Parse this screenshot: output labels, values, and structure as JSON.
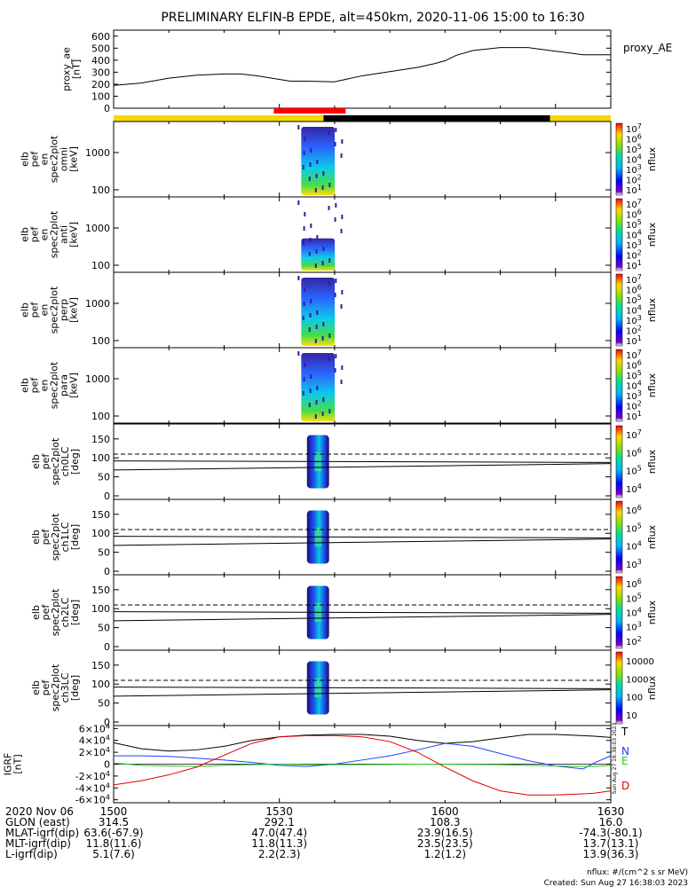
{
  "title": "PRELIMINARY ELFIN-B EPDE, alt=450km, 2020-11-06 15:00 to 16:30",
  "colors": {
    "orbit_day": "#f5d800",
    "orbit_night": "#000000",
    "science_zone": "#ff0000",
    "trace_T": "#000000",
    "trace_N": "#1f3fff",
    "trace_E": "#1ccf1c",
    "trace_D": "#e00000"
  },
  "chart_data": [
    {
      "type": "line",
      "panel": "proxy_ae",
      "ylabel_lines": [
        "proxy_ae",
        "[nT]"
      ],
      "legend": "proxy_AE",
      "ylim": [
        0,
        650
      ],
      "yticks": [
        "0",
        "100",
        "200",
        "300",
        "400",
        "500",
        "600"
      ],
      "x": [
        1500,
        1505,
        1510,
        1515,
        1520,
        1523,
        1526,
        1530,
        1532,
        1535,
        1540,
        1545,
        1550,
        1555,
        1558,
        1600,
        1602,
        1605,
        1610,
        1615,
        1620,
        1625,
        1630
      ],
      "values": [
        190,
        210,
        250,
        275,
        285,
        285,
        270,
        240,
        225,
        225,
        220,
        270,
        305,
        340,
        370,
        395,
        440,
        480,
        505,
        505,
        475,
        445,
        445
      ]
    },
    {
      "type": "heatmap",
      "panel": "spectra",
      "panels": [
        {
          "ylabel_lines": [
            "elb",
            "pef",
            "en",
            "spec2plot",
            "omni",
            "[keV]"
          ],
          "yticks": [
            "100",
            "1000"
          ],
          "cbar_ticks": [
            "10<sup>1</sup>",
            "10<sup>2</sup>",
            "10<sup>3</sup>",
            "10<sup>4</sup>",
            "10<sup>5</sup>",
            "10<sup>6</sup>",
            "10<sup>7</sup>"
          ],
          "cbar_label": "nflux"
        },
        {
          "ylabel_lines": [
            "elb",
            "pef",
            "en",
            "spec2plot",
            "anti",
            "[keV]"
          ],
          "yticks": [
            "100",
            "1000"
          ],
          "cbar_ticks": [
            "10<sup>1</sup>",
            "10<sup>2</sup>",
            "10<sup>3</sup>",
            "10<sup>4</sup>",
            "10<sup>5</sup>",
            "10<sup>6</sup>",
            "10<sup>7</sup>"
          ],
          "cbar_label": "nflux"
        },
        {
          "ylabel_lines": [
            "elb",
            "pef",
            "en",
            "spec2plot",
            "perp",
            "[keV]"
          ],
          "yticks": [
            "100",
            "1000"
          ],
          "cbar_ticks": [
            "10<sup>1</sup>",
            "10<sup>2</sup>",
            "10<sup>3</sup>",
            "10<sup>4</sup>",
            "10<sup>5</sup>",
            "10<sup>6</sup>",
            "10<sup>7</sup>"
          ],
          "cbar_label": "nflux"
        },
        {
          "ylabel_lines": [
            "elb",
            "pef",
            "en",
            "spec2plot",
            "para",
            "[keV]"
          ],
          "yticks": [
            "100",
            "1000"
          ],
          "cbar_ticks": [
            "10<sup>1</sup>",
            "10<sup>2</sup>",
            "10<sup>3</sup>",
            "10<sup>4</sup>",
            "10<sup>5</sup>",
            "10<sup>6</sup>",
            "10<sup>7</sup>"
          ],
          "cbar_label": "nflux"
        }
      ]
    },
    {
      "type": "heatmap",
      "panel": "pitch_angle",
      "panels": [
        {
          "ylabel_lines": [
            "elb",
            "pef",
            "spec2plot",
            "ch0LC",
            "[deg]"
          ],
          "yticks": [
            "0",
            "50",
            "100",
            "150"
          ],
          "cbar_ticks": [
            "10<sup>4</sup>",
            "10<sup>5</sup>",
            "10<sup>6</sup>",
            "10<sup>7</sup>"
          ],
          "cbar_label": "nflux"
        },
        {
          "ylabel_lines": [
            "elb",
            "pef",
            "spec2plot",
            "ch1LC",
            "[deg]"
          ],
          "yticks": [
            "0",
            "50",
            "100",
            "150"
          ],
          "cbar_ticks": [
            "10<sup>3</sup>",
            "10<sup>4</sup>",
            "10<sup>5</sup>",
            "10<sup>6</sup>"
          ],
          "cbar_label": "nflux"
        },
        {
          "ylabel_lines": [
            "elb",
            "pef",
            "spec2plot",
            "ch2LC",
            "[deg]"
          ],
          "yticks": [
            "0",
            "50",
            "100",
            "150"
          ],
          "cbar_ticks": [
            "10<sup>2</sup>",
            "10<sup>3</sup>",
            "10<sup>4</sup>",
            "10<sup>5</sup>",
            "10<sup>6</sup>"
          ],
          "cbar_label": "nflux"
        },
        {
          "ylabel_lines": [
            "elb",
            "pef",
            "spec2plot",
            "ch3LC",
            "[deg]"
          ],
          "yticks": [
            "0",
            "50",
            "100",
            "150"
          ],
          "cbar_ticks": [
            "10",
            "100",
            "1000",
            "10000"
          ],
          "cbar_label": "nflux"
        }
      ]
    },
    {
      "type": "line",
      "panel": "igrf",
      "ylabel_lines": [
        "IGRF",
        "[nT]"
      ],
      "ylim": [
        -65000,
        65000
      ],
      "yticks": [
        "-6×10<sup>4</sup>",
        "-4×10<sup>4</sup>",
        "-2×10<sup>4</sup>",
        "0",
        "2×10<sup>4</sup>",
        "4×10<sup>4</sup>",
        "6×10<sup>4</sup>"
      ],
      "x": [
        1500,
        1505,
        1510,
        1515,
        1520,
        1525,
        1530,
        1535,
        1540,
        1545,
        1550,
        1555,
        1600,
        1605,
        1610,
        1615,
        1620,
        1625,
        1627,
        1630
      ],
      "series": [
        {
          "name": "T",
          "color": "#000000",
          "values": [
            36000,
            26000,
            22000,
            24000,
            30000,
            40000,
            46000,
            49000,
            50000,
            50000,
            47000,
            40000,
            35000,
            38000,
            44000,
            50000,
            50000,
            48000,
            47000,
            45000
          ]
        },
        {
          "name": "N",
          "color": "#1f3fff",
          "values": [
            14000,
            14000,
            13000,
            10000,
            7000,
            3000,
            -2000,
            -4000,
            0,
            7000,
            14000,
            24000,
            35000,
            30000,
            18000,
            6000,
            -3000,
            -8000,
            2000,
            14000
          ]
        },
        {
          "name": "E",
          "color": "#1ccf1c",
          "values": [
            2000,
            -2000,
            -3000,
            -4000,
            -2000,
            -1000,
            0,
            -1000,
            -1000,
            -1000,
            -500,
            0,
            -200,
            -500,
            -1000,
            -2000,
            -3000,
            -4000,
            -4000,
            -2000
          ]
        },
        {
          "name": "D",
          "color": "#e00000",
          "values": [
            -35000,
            -28000,
            -18000,
            -5000,
            15000,
            35000,
            46000,
            48000,
            48000,
            46000,
            38000,
            20000,
            -5000,
            -28000,
            -45000,
            -52000,
            -52000,
            -50000,
            -49000,
            -45000
          ]
        }
      ]
    }
  ],
  "footer": {
    "rows": [
      {
        "label": "2020 Nov 06",
        "values": [
          "1500",
          "1530",
          "1600",
          "1630"
        ]
      },
      {
        "label": "GLON (east)",
        "values": [
          "314.5",
          "292.1",
          "108.3",
          "16.0"
        ]
      },
      {
        "label": "MLAT-igrf(dip)",
        "values": [
          "63.6(-67.9)",
          "47.0(47.4)",
          "23.9(16.5)",
          "-74.3(-80.1)"
        ]
      },
      {
        "label": "MLT-igrf(dip)",
        "values": [
          "11.8(11.6)",
          "11.8(11.3)",
          "23.5(23.5)",
          "13.7(13.1)"
        ]
      },
      {
        "label": "L-igrf(dip)",
        "values": [
          "5.1(7.6)",
          "2.2(2.3)",
          "1.2(1.2)",
          "13.9(36.3)"
        ]
      }
    ],
    "units_note": "nflux: #/(cm^2 s sr MeV)",
    "created_note": "Created: Sun Aug 27 16:38:03 2023",
    "side_stamp": "Sun Aug 27 16:38:03 2023"
  }
}
